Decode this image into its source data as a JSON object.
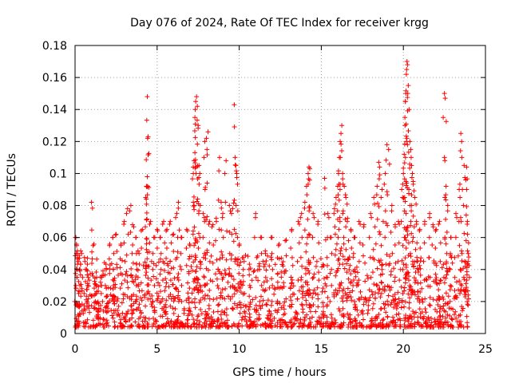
{
  "chart_data": {
    "type": "scatter",
    "title": "Day 076 of 2024, Rate Of TEC Index for receiver krgg",
    "xlabel": "GPS time / hours",
    "ylabel": "ROTI / TECUs",
    "xlim": [
      0,
      25
    ],
    "ylim": [
      0,
      0.18
    ],
    "xticks": [
      0,
      5,
      10,
      15,
      20,
      25
    ],
    "xtick_labels": [
      "0",
      "5",
      "10",
      "15",
      "20",
      "25"
    ],
    "yticks": [
      0,
      0.02,
      0.04,
      0.06,
      0.08,
      0.1,
      0.12,
      0.14,
      0.16,
      0.18
    ],
    "ytick_labels": [
      "0",
      "0.02",
      "0.04",
      "0.06",
      "0.08",
      "0.1",
      "0.12",
      "0.14",
      "0.16",
      "0.18"
    ],
    "grid": true,
    "marker": "+",
    "series": [
      {
        "name": "ROTI",
        "color": "#ff0000",
        "points": [
          [
            0.05,
            0.06
          ],
          [
            0.1,
            0.055
          ],
          [
            0.15,
            0.05
          ],
          [
            0.2,
            0.045
          ],
          [
            0.3,
            0.04
          ],
          [
            0.4,
            0.05
          ],
          [
            0.6,
            0.045
          ],
          [
            0.7,
            0.04
          ],
          [
            0.8,
            0.035
          ],
          [
            1.0,
            0.082
          ],
          [
            1.1,
            0.055
          ],
          [
            1.3,
            0.03
          ],
          [
            1.6,
            0.03
          ],
          [
            1.9,
            0.04
          ],
          [
            2.1,
            0.055
          ],
          [
            2.3,
            0.06
          ],
          [
            2.5,
            0.062
          ],
          [
            2.8,
            0.055
          ],
          [
            3.0,
            0.07
          ],
          [
            3.2,
            0.078
          ],
          [
            3.4,
            0.08
          ],
          [
            3.5,
            0.068
          ],
          [
            3.7,
            0.06
          ],
          [
            3.9,
            0.05
          ],
          [
            4.1,
            0.065
          ],
          [
            4.3,
            0.085
          ],
          [
            4.35,
            0.092
          ],
          [
            4.4,
            0.098
          ],
          [
            4.42,
            0.122
          ],
          [
            4.45,
            0.123
          ],
          [
            4.4,
            0.148
          ],
          [
            4.6,
            0.07
          ],
          [
            4.8,
            0.06
          ],
          [
            5.0,
            0.065
          ],
          [
            5.2,
            0.06
          ],
          [
            5.4,
            0.07
          ],
          [
            5.6,
            0.065
          ],
          [
            5.8,
            0.07
          ],
          [
            6.0,
            0.062
          ],
          [
            6.2,
            0.075
          ],
          [
            6.3,
            0.082
          ],
          [
            6.5,
            0.06
          ],
          [
            6.8,
            0.065
          ],
          [
            7.0,
            0.055
          ],
          [
            7.2,
            0.104
          ],
          [
            7.25,
            0.108
          ],
          [
            7.3,
            0.113
          ],
          [
            7.3,
            0.135
          ],
          [
            7.32,
            0.14
          ],
          [
            7.35,
            0.145
          ],
          [
            7.4,
            0.148
          ],
          [
            7.45,
            0.142
          ],
          [
            7.5,
            0.13
          ],
          [
            7.55,
            0.105
          ],
          [
            7.6,
            0.1
          ],
          [
            7.8,
            0.075
          ],
          [
            7.9,
            0.12
          ],
          [
            8.0,
            0.122
          ],
          [
            8.1,
            0.126
          ],
          [
            8.2,
            0.07
          ],
          [
            8.4,
            0.068
          ],
          [
            8.6,
            0.072
          ],
          [
            8.8,
            0.11
          ],
          [
            8.9,
            0.082
          ],
          [
            9.0,
            0.075
          ],
          [
            9.2,
            0.108
          ],
          [
            9.4,
            0.08
          ],
          [
            9.6,
            0.078
          ],
          [
            9.7,
            0.143
          ],
          [
            9.75,
            0.11
          ],
          [
            9.8,
            0.105
          ],
          [
            9.85,
            0.1
          ],
          [
            10.0,
            0.055
          ],
          [
            10.3,
            0.045
          ],
          [
            10.6,
            0.04
          ],
          [
            11.0,
            0.075
          ],
          [
            11.3,
            0.06
          ],
          [
            11.6,
            0.05
          ],
          [
            12.0,
            0.06
          ],
          [
            12.4,
            0.055
          ],
          [
            12.8,
            0.058
          ],
          [
            13.2,
            0.065
          ],
          [
            13.6,
            0.07
          ],
          [
            13.8,
            0.075
          ],
          [
            14.0,
            0.082
          ],
          [
            14.1,
            0.092
          ],
          [
            14.2,
            0.1
          ],
          [
            14.25,
            0.104
          ],
          [
            14.3,
            0.103
          ],
          [
            14.5,
            0.075
          ],
          [
            14.8,
            0.07
          ],
          [
            15.2,
            0.097
          ],
          [
            15.4,
            0.075
          ],
          [
            15.6,
            0.06
          ],
          [
            15.8,
            0.078
          ],
          [
            15.9,
            0.085
          ],
          [
            16.0,
            0.092
          ],
          [
            16.05,
            0.1
          ],
          [
            16.1,
            0.11
          ],
          [
            16.15,
            0.12
          ],
          [
            16.2,
            0.125
          ],
          [
            16.25,
            0.13
          ],
          [
            16.3,
            0.1
          ],
          [
            16.4,
            0.092
          ],
          [
            16.5,
            0.085
          ],
          [
            16.6,
            0.072
          ],
          [
            16.8,
            0.065
          ],
          [
            17.0,
            0.06
          ],
          [
            17.3,
            0.07
          ],
          [
            17.6,
            0.068
          ],
          [
            18.0,
            0.075
          ],
          [
            18.2,
            0.085
          ],
          [
            18.4,
            0.092
          ],
          [
            18.5,
            0.107
          ],
          [
            18.55,
            0.104
          ],
          [
            18.7,
            0.09
          ],
          [
            18.9,
            0.1
          ],
          [
            19.0,
            0.118
          ],
          [
            19.1,
            0.115
          ],
          [
            19.3,
            0.08
          ],
          [
            19.5,
            0.068
          ],
          [
            19.7,
            0.07
          ],
          [
            19.9,
            0.09
          ],
          [
            20.0,
            0.1
          ],
          [
            20.05,
            0.112
          ],
          [
            20.1,
            0.13
          ],
          [
            20.12,
            0.145
          ],
          [
            20.15,
            0.15
          ],
          [
            20.18,
            0.162
          ],
          [
            20.2,
            0.165
          ],
          [
            20.22,
            0.17
          ],
          [
            20.25,
            0.168
          ],
          [
            20.3,
            0.155
          ],
          [
            20.35,
            0.14
          ],
          [
            20.4,
            0.12
          ],
          [
            20.45,
            0.115
          ],
          [
            20.5,
            0.105
          ],
          [
            20.55,
            0.1
          ],
          [
            20.6,
            0.095
          ],
          [
            20.7,
            0.085
          ],
          [
            20.8,
            0.07
          ],
          [
            21.0,
            0.065
          ],
          [
            21.3,
            0.07
          ],
          [
            21.6,
            0.075
          ],
          [
            21.8,
            0.068
          ],
          [
            22.0,
            0.065
          ],
          [
            22.2,
            0.07
          ],
          [
            22.5,
            0.15
          ],
          [
            22.55,
            0.147
          ],
          [
            22.6,
            0.092
          ],
          [
            22.7,
            0.08
          ],
          [
            22.9,
            0.06
          ],
          [
            23.2,
            0.075
          ],
          [
            23.4,
            0.09
          ],
          [
            23.5,
            0.125
          ],
          [
            23.55,
            0.12
          ],
          [
            23.7,
            0.105
          ],
          [
            23.8,
            0.096
          ],
          [
            23.85,
            0.104
          ],
          [
            23.9,
            0.07
          ],
          [
            23.95,
            0.05
          ]
        ]
      }
    ]
  }
}
